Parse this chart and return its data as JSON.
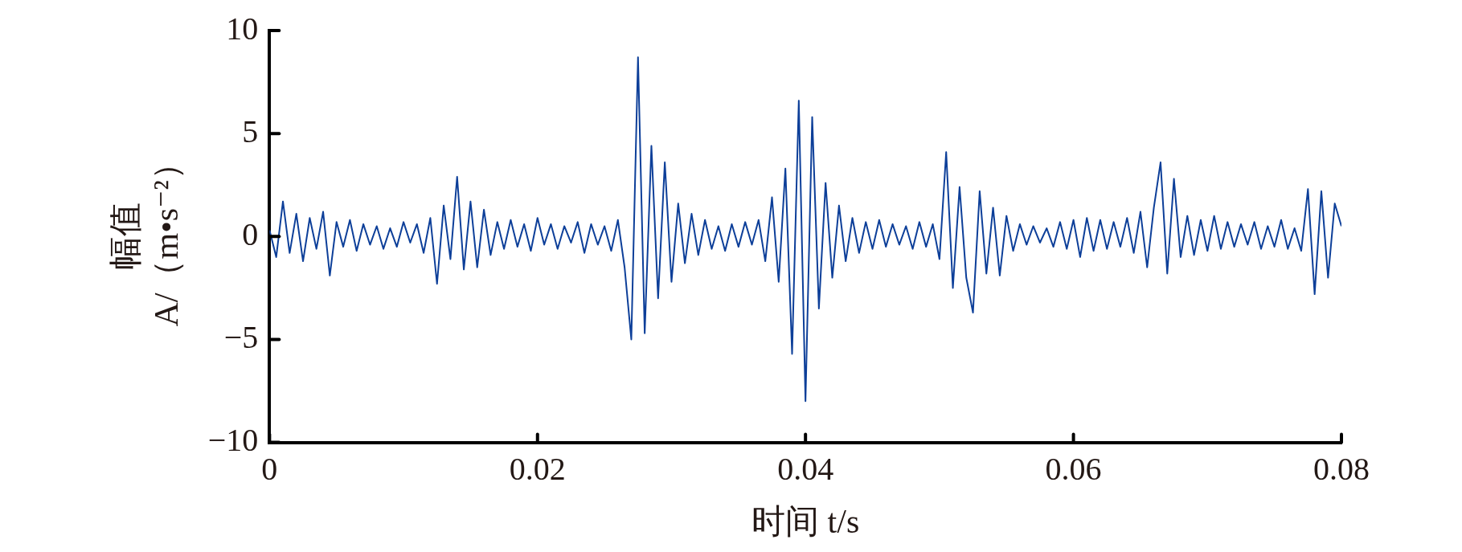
{
  "chart_data": {
    "type": "line",
    "xlabel": "时间 t/s",
    "ylabel": "幅值\nA/（m•s⁻²）",
    "xlim": [
      0,
      0.08
    ],
    "xticks": [
      0,
      0.02,
      0.04,
      0.06,
      0.08
    ],
    "ylim": [
      -10,
      10
    ],
    "yticks": [
      {
        "value": -10,
        "label": "−10"
      },
      {
        "value": -5,
        "label": "−5"
      },
      0,
      5,
      10
    ],
    "grid": false,
    "legend": false,
    "marker": "none",
    "line_style": "solid",
    "series": [
      {
        "color": "#0d3f99",
        "x": [
          0,
          0.0005,
          0.001,
          0.0015,
          0.002,
          0.0025,
          0.003,
          0.0035,
          0.004,
          0.0045,
          0.005,
          0.0055,
          0.006,
          0.0065,
          0.007,
          0.0075,
          0.008,
          0.0085,
          0.009,
          0.0095,
          0.01,
          0.0105,
          0.011,
          0.0115,
          0.012,
          0.0125,
          0.013,
          0.0135,
          0.014,
          0.0145,
          0.015,
          0.0155,
          0.016,
          0.0165,
          0.017,
          0.0175,
          0.018,
          0.0185,
          0.019,
          0.0195,
          0.02,
          0.0205,
          0.021,
          0.0215,
          0.022,
          0.0225,
          0.023,
          0.0235,
          0.024,
          0.0245,
          0.025,
          0.0255,
          0.026,
          0.0265,
          0.027,
          0.0275,
          0.028,
          0.0285,
          0.029,
          0.0295,
          0.03,
          0.0305,
          0.031,
          0.0315,
          0.032,
          0.0325,
          0.033,
          0.0335,
          0.034,
          0.0345,
          0.035,
          0.0355,
          0.036,
          0.0365,
          0.037,
          0.0375,
          0.038,
          0.0385,
          0.039,
          0.0395,
          0.04,
          0.0405,
          0.041,
          0.0415,
          0.042,
          0.0425,
          0.043,
          0.0435,
          0.044,
          0.0445,
          0.045,
          0.0455,
          0.046,
          0.0465,
          0.047,
          0.0475,
          0.048,
          0.0485,
          0.049,
          0.0495,
          0.05,
          0.0505,
          0.051,
          0.0515,
          0.052,
          0.0525,
          0.053,
          0.0535,
          0.054,
          0.0545,
          0.055,
          0.0555,
          0.056,
          0.0565,
          0.057,
          0.0575,
          0.058,
          0.0585,
          0.059,
          0.0595,
          0.06,
          0.0605,
          0.061,
          0.0615,
          0.062,
          0.0625,
          0.063,
          0.0635,
          0.064,
          0.0645,
          0.065,
          0.0655,
          0.066,
          0.0665,
          0.067,
          0.0675,
          0.068,
          0.0685,
          0.069,
          0.0695,
          0.07,
          0.0705,
          0.071,
          0.0715,
          0.072,
          0.0725,
          0.073,
          0.0735,
          0.074,
          0.0745,
          0.075,
          0.0755,
          0.076,
          0.0765,
          0.077,
          0.0775,
          0.078,
          0.0785,
          0.079,
          0.0795,
          0.08
        ],
        "values": [
          0.3,
          -1.0,
          1.7,
          -0.8,
          1.1,
          -1.2,
          0.9,
          -0.6,
          1.2,
          -1.9,
          0.7,
          -0.5,
          0.8,
          -0.7,
          0.6,
          -0.4,
          0.5,
          -0.6,
          0.4,
          -0.5,
          0.7,
          -0.3,
          0.6,
          -0.8,
          0.9,
          -2.3,
          1.5,
          -1.1,
          2.9,
          -1.6,
          1.7,
          -1.5,
          1.3,
          -0.9,
          0.7,
          -0.6,
          0.8,
          -0.5,
          0.6,
          -0.7,
          0.9,
          -0.4,
          0.6,
          -0.6,
          0.5,
          -0.3,
          0.7,
          -0.8,
          0.6,
          -0.4,
          0.5,
          -0.7,
          0.8,
          -1.5,
          -5.0,
          8.7,
          -4.7,
          4.4,
          -3.0,
          3.6,
          -2.2,
          1.6,
          -1.3,
          1.1,
          -0.9,
          0.8,
          -0.6,
          0.5,
          -0.7,
          0.6,
          -0.5,
          0.7,
          -0.4,
          0.8,
          -1.2,
          1.9,
          -2.2,
          3.3,
          -5.7,
          6.6,
          -8.0,
          5.8,
          -3.5,
          2.6,
          -2.0,
          1.5,
          -1.2,
          0.9,
          -0.8,
          0.7,
          -0.6,
          0.8,
          -0.5,
          0.6,
          -0.4,
          0.5,
          -0.6,
          0.7,
          -0.5,
          0.6,
          -1.1,
          4.1,
          -2.5,
          2.4,
          -2.0,
          -3.7,
          2.2,
          -1.8,
          1.4,
          -1.9,
          1.0,
          -0.7,
          0.6,
          -0.4,
          0.5,
          -0.3,
          0.4,
          -0.5,
          0.7,
          -0.6,
          0.8,
          -1.0,
          0.9,
          -0.7,
          0.8,
          -0.6,
          0.7,
          -0.5,
          0.9,
          -0.8,
          1.2,
          -1.5,
          1.4,
          3.6,
          -1.8,
          2.8,
          -1.0,
          1.0,
          -0.9,
          0.8,
          -0.7,
          1.0,
          -0.6,
          0.7,
          -0.5,
          0.6,
          -0.4,
          0.7,
          -0.6,
          0.5,
          -0.5,
          0.8,
          -0.6,
          0.4,
          -0.7,
          2.3,
          -2.8,
          2.2,
          -2.0,
          1.6,
          0.5
        ]
      }
    ]
  }
}
